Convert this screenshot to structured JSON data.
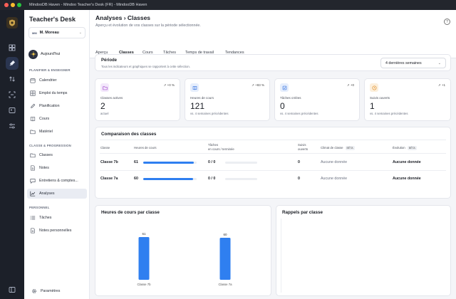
{
  "window": {
    "title": "MindooDB Haven - Mindoo Teacher's Desk (FR) - MindooDB Haven"
  },
  "sidebar": {
    "brand": "Teacher's Desk",
    "user": {
      "initials": "MM",
      "name": "M. Moreau"
    },
    "today": "Aujourd'hui",
    "sections": [
      {
        "title": "PLANIFIER & ENSEIGNER",
        "items": [
          "Calendrier",
          "Emploi du temps",
          "Planification",
          "Cours",
          "Matériel"
        ]
      },
      {
        "title": "CLASSE & PROGRESSION",
        "items": [
          "Classes",
          "Notes",
          "Entretiens & comptes...",
          "Analyses"
        ]
      },
      {
        "title": "PERSONNEL",
        "items": [
          "Tâches",
          "Notes personnelles"
        ]
      }
    ],
    "settings": "Paramètres"
  },
  "header": {
    "title": "Analyses › Classes",
    "subtitle": "Aperçu et évolution de vos classes sur la période sélectionnée."
  },
  "tabs": [
    "Aperçu",
    "Classes",
    "Cours",
    "Tâches",
    "Temps de travail",
    "Tendances"
  ],
  "period": {
    "title": "Période",
    "subtitle": "Tous les indicateurs et graphiques se rapportent à cette sélection.",
    "selected": "4 dernières semaines"
  },
  "kpis": [
    {
      "label": "Classes actives",
      "value": "2",
      "delta": "+0 %",
      "footer": "actuel",
      "icon": "folder-icon",
      "color": "#f3e8fb",
      "ink": "#a64fd0"
    },
    {
      "label": "Heures de cours",
      "value": "121",
      "delta": "+83 %",
      "footer": "vs. 4 semaines précédentes",
      "icon": "book-icon",
      "color": "#e6eefc",
      "ink": "#2f6fe0"
    },
    {
      "label": "Tâches créées",
      "value": "0",
      "delta": "+0",
      "footer": "vs. 4 semaines précédentes",
      "icon": "checkbox-icon",
      "color": "#e6eefc",
      "ink": "#2f6fe0"
    },
    {
      "label": "Suivis ouverts",
      "value": "1",
      "delta": "+1",
      "footer": "vs. 4 semaines précédentes",
      "icon": "clock-icon",
      "color": "#fcefdc",
      "ink": "#e08a1e"
    }
  ],
  "comparison": {
    "title": "Comparaison des classes",
    "headers": {
      "classe": "Classe",
      "heures": "Heures de cours",
      "taches": "Tâches",
      "taches_sub": "en cours / terminée",
      "suivis": "Suivis",
      "suivis_sub": "ouverts",
      "climat": "Climat de classe",
      "evolution": "Évolution",
      "beta": "BÊTA"
    },
    "rows": [
      {
        "classe": "Classe 7b",
        "heures": "61",
        "heures_pct": 0.95,
        "taches": "0 / 0",
        "suivis": "0",
        "climat": "Aucune donnée",
        "evolution": "Aucune donnée"
      },
      {
        "classe": "Classe 7a",
        "heures": "60",
        "heures_pct": 0.93,
        "taches": "0 / 0",
        "suivis": "0",
        "climat": "Aucune donnée",
        "evolution": "Aucune donnée"
      }
    ]
  },
  "hours_chart": {
    "title": "Heures de cours par classe"
  },
  "reminders": {
    "title": "Rappels par classe"
  },
  "chart_data": {
    "type": "bar",
    "title": "Heures de cours par classe",
    "categories": [
      "Classe 7b",
      "Classe 7a"
    ],
    "values": [
      61,
      60
    ],
    "ylim": [
      0,
      61
    ],
    "color": "#2f7ff0"
  }
}
